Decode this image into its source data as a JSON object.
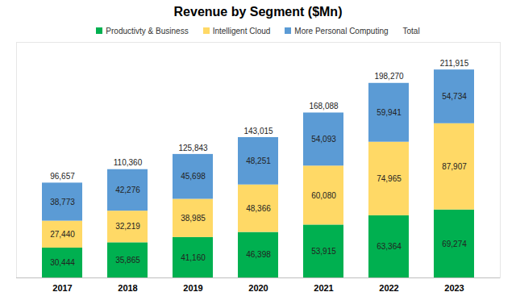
{
  "chart_data": {
    "type": "bar",
    "title": "Revenue by Segment ($Mn)",
    "stacked": true,
    "data_labels": true,
    "tick_labels": "x",
    "grid": false,
    "categories": [
      "2017",
      "2018",
      "2019",
      "2020",
      "2021",
      "2022",
      "2023"
    ],
    "ylim": [
      0,
      240000
    ],
    "series": [
      {
        "name": "Productivty & Business",
        "color": "#00b050",
        "values": [
          30444,
          35865,
          41160,
          46398,
          53915,
          63364,
          69274
        ],
        "value_labels": [
          "30,444",
          "35,865",
          "41,160",
          "46,398",
          "53,915",
          "63,364",
          "69,274"
        ]
      },
      {
        "name": "Intelligent Cloud",
        "color": "#ffd966",
        "values": [
          27440,
          32219,
          38985,
          48366,
          60080,
          74965,
          87907
        ],
        "value_labels": [
          "27,440",
          "32,219",
          "38,985",
          "48,366",
          "60,080",
          "74,965",
          "87,907"
        ]
      },
      {
        "name": "More Personal Computing",
        "color": "#5b9bd5",
        "values": [
          38773,
          42276,
          45698,
          48251,
          54093,
          59941,
          54734
        ],
        "value_labels": [
          "38,773",
          "42,276",
          "45,698",
          "48,251",
          "54,093",
          "59,941",
          "54,734"
        ]
      },
      {
        "name": "Total",
        "type": "text",
        "values": [
          96657,
          110360,
          125843,
          143015,
          168088,
          198270,
          211915
        ],
        "value_labels": [
          "96,657",
          "110,360",
          "125,843",
          "143,015",
          "168,088",
          "198,270",
          "211,915"
        ]
      }
    ]
  }
}
